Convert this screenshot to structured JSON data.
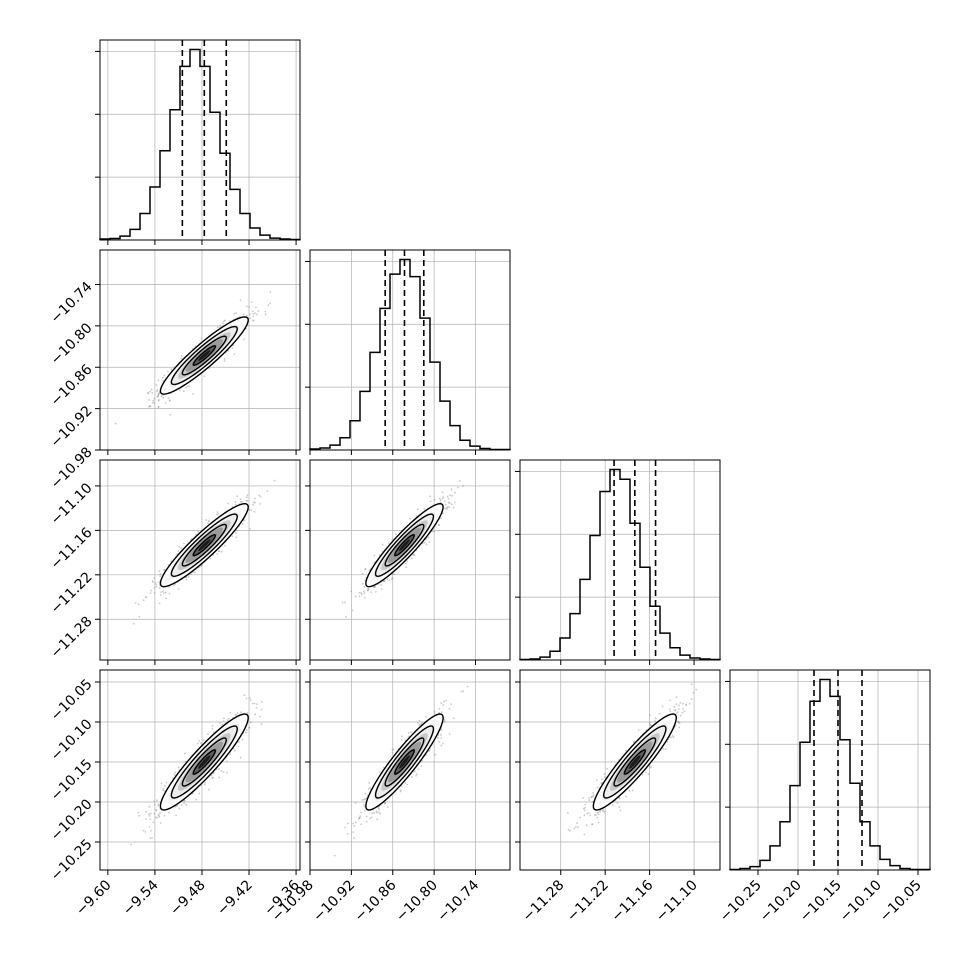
{
  "chart_data": {
    "type": "corner",
    "grid": true,
    "colors": {
      "contour": "#000000",
      "samples": "#8a8a8a",
      "grid": "#b0b0b0",
      "quantile": "#000000"
    },
    "parameters": [
      {
        "axis_range": [
          -9.61,
          -9.355
        ],
        "ticks": [
          "−9.60",
          "−9.54",
          "−9.48",
          "−9.42",
          "−9.36"
        ],
        "tick_values": [
          -9.6,
          -9.54,
          -9.48,
          -9.42,
          -9.36
        ]
      },
      {
        "axis_range": [
          -10.98,
          -10.69
        ],
        "ticks": [
          "−10.98",
          "−10.92",
          "−10.86",
          "−10.80",
          "−10.74"
        ],
        "tick_values": [
          -10.98,
          -10.92,
          -10.86,
          -10.8,
          -10.74
        ]
      },
      {
        "axis_range": [
          -11.335,
          -11.065
        ],
        "ticks": [
          "−11.28",
          "−11.22",
          "−11.16",
          "−11.10"
        ],
        "tick_values": [
          -11.28,
          -11.22,
          -11.16,
          -11.1
        ]
      },
      {
        "axis_range": [
          -10.285,
          -10.035
        ],
        "ticks": [
          "−10.25",
          "−10.20",
          "−10.15",
          "−10.10",
          "−10.05"
        ],
        "tick_values": [
          -10.25,
          -10.2,
          -10.15,
          -10.1,
          -10.05
        ]
      }
    ],
    "histograms": [
      {
        "edges": [
          -9.61,
          -9.355
        ],
        "counts": [
          2,
          3,
          8,
          22,
          55,
          110,
          185,
          270,
          360,
          395,
          360,
          265,
          180,
          105,
          55,
          25,
          10,
          4,
          2,
          1
        ],
        "quantiles": [
          -9.505,
          -9.477,
          -9.449
        ]
      },
      {
        "edges": [
          -10.98,
          -10.69
        ],
        "counts": [
          2,
          4,
          10,
          25,
          60,
          120,
          200,
          290,
          360,
          390,
          355,
          270,
          180,
          100,
          50,
          20,
          8,
          3,
          1,
          1
        ],
        "quantiles": [
          -10.871,
          -10.843,
          -10.815
        ]
      },
      {
        "edges": [
          -11.335,
          -11.065
        ],
        "counts": [
          1,
          2,
          6,
          18,
          45,
          95,
          165,
          255,
          345,
          390,
          370,
          280,
          190,
          110,
          55,
          25,
          10,
          4,
          2,
          1
        ],
        "quantiles": [
          -11.208,
          -11.18,
          -11.152
        ]
      },
      {
        "edges": [
          -10.285,
          -10.035
        ],
        "counts": [
          1,
          3,
          7,
          20,
          50,
          100,
          175,
          265,
          350,
          395,
          360,
          270,
          180,
          100,
          50,
          22,
          9,
          3,
          1,
          1
        ],
        "quantiles": [
          -10.18,
          -10.15,
          -10.12
        ]
      }
    ],
    "posterior": {
      "mean": [
        -9.477,
        -10.843,
        -11.18,
        -10.15
      ],
      "std": [
        0.028,
        0.028,
        0.028,
        0.03
      ],
      "correlation": 0.92
    },
    "contour_levels": [
      0.5,
      1.0,
      1.5,
      2.0
    ]
  }
}
